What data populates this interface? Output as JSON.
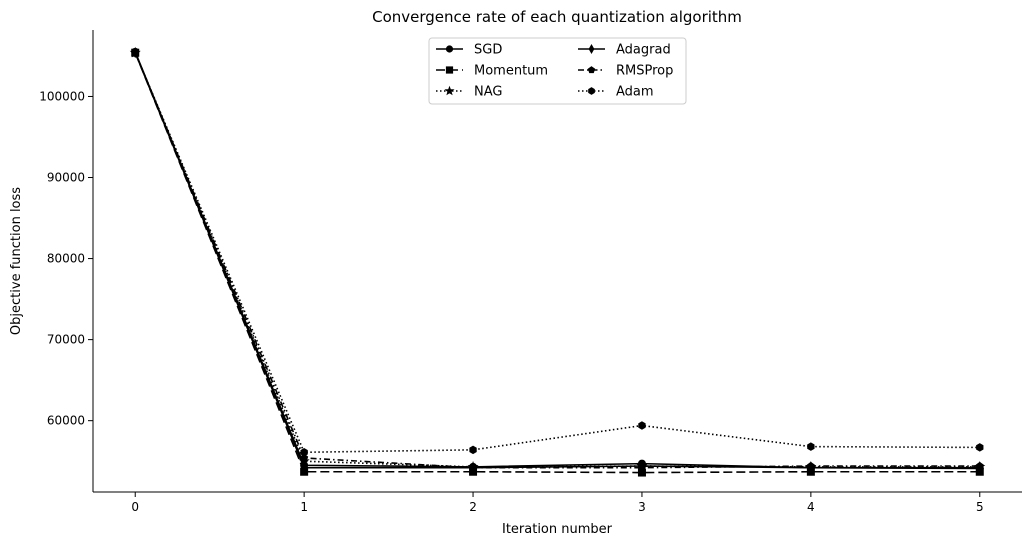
{
  "chart_data": {
    "type": "line",
    "title": "Convergence rate of each quantization algorithm",
    "xlabel": "Iteration number",
    "ylabel": "Objective function loss",
    "x": [
      0,
      1,
      2,
      3,
      4,
      5
    ],
    "xlim": [
      -0.25,
      5.25
    ],
    "ylim": [
      51200,
      108200
    ],
    "xticks": [
      "0",
      "1",
      "2",
      "3",
      "4",
      "5"
    ],
    "yticks": [
      "60000",
      "70000",
      "80000",
      "90000",
      "100000"
    ],
    "grid": false,
    "legend_position": "top-center",
    "series": [
      {
        "name": "SGD",
        "values": [
          105500,
          54500,
          54300,
          54700,
          54200,
          54100
        ],
        "dash": "",
        "marker": "circle"
      },
      {
        "name": "Momentum",
        "values": [
          105400,
          53700,
          53700,
          53600,
          53700,
          53700
        ],
        "dash": "9,4",
        "marker": "square"
      },
      {
        "name": "NAG",
        "values": [
          105400,
          55000,
          54300,
          54400,
          54300,
          54300
        ],
        "dash": "1.5,2.5",
        "marker": "star"
      },
      {
        "name": "Adagrad",
        "values": [
          105400,
          54200,
          54200,
          54400,
          54200,
          54200
        ],
        "dash": "",
        "marker": "diamond"
      },
      {
        "name": "RMSProp",
        "values": [
          105400,
          55400,
          54200,
          54200,
          54400,
          54400
        ],
        "dash": "6,3,1.5,3",
        "marker": "pentagon"
      },
      {
        "name": "Adam",
        "values": [
          105400,
          56100,
          56400,
          59400,
          56800,
          56700
        ],
        "dash": "1.5,2.5",
        "marker": "hexagon"
      }
    ]
  }
}
